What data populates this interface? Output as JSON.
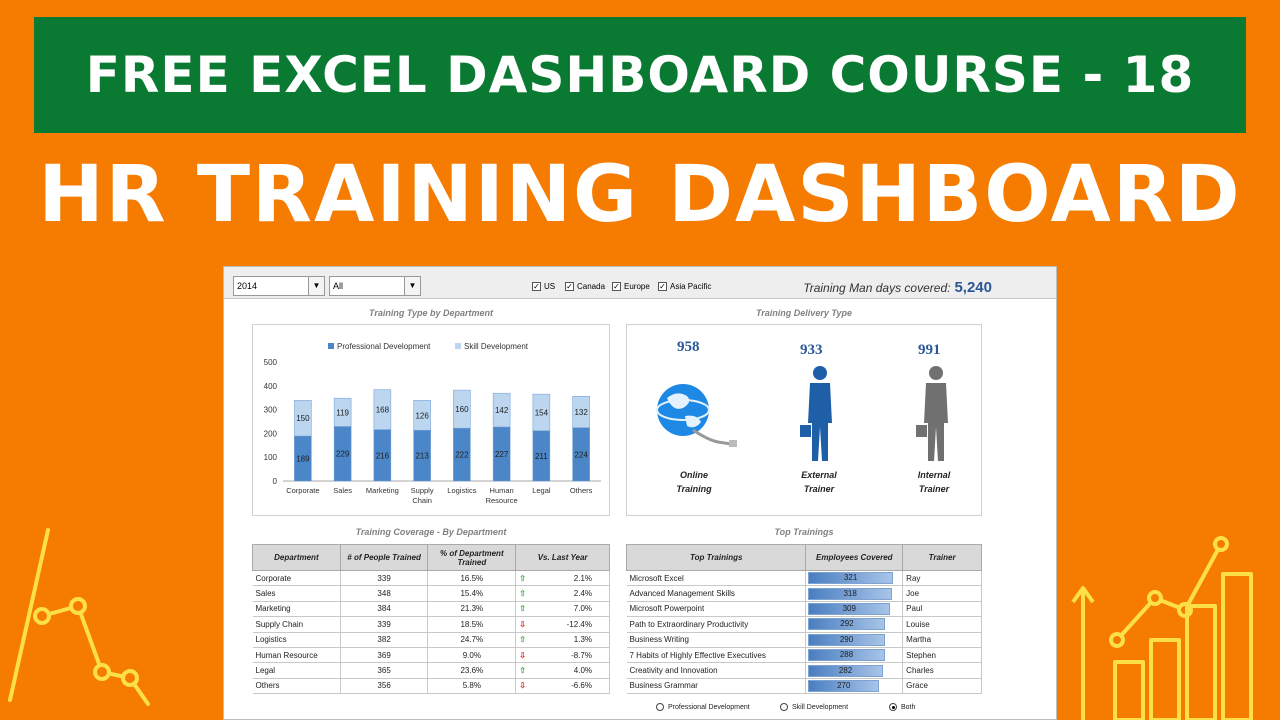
{
  "banner": {
    "title": "FREE EXCEL DASHBOARD COURSE - 18"
  },
  "headline": "HR TRAINING DASHBOARD",
  "dashboard": {
    "year_select": "2014",
    "dept_select": "All",
    "regions": [
      "US",
      "Canada",
      "Europe",
      "Asia Pacific"
    ],
    "mandays_label": "Training Man days covered:",
    "mandays_value": "5,240",
    "chart_title": "Training Type by Department",
    "delivery_title": "Training Delivery Type",
    "coverage_title": "Training Coverage - By Department",
    "top_title": "Top Trainings",
    "delivery": [
      {
        "value": "958",
        "label1": "Online",
        "label2": "Training",
        "icon": "globe-icon"
      },
      {
        "value": "933",
        "label1": "External",
        "label2": "Trainer",
        "icon": "businessman-icon"
      },
      {
        "value": "991",
        "label1": "Internal",
        "label2": "Trainer",
        "icon": "businessman-icon"
      }
    ],
    "coverage_headers": [
      "Department",
      "# of People Trained",
      "% of Department Trained",
      "Vs. Last Year"
    ],
    "coverage_rows": [
      {
        "dept": "Corporate",
        "people": "339",
        "pct": "16.5%",
        "dir": "up",
        "vs": "2.1%"
      },
      {
        "dept": "Sales",
        "people": "348",
        "pct": "15.4%",
        "dir": "up",
        "vs": "2.4%"
      },
      {
        "dept": "Marketing",
        "people": "384",
        "pct": "21.3%",
        "dir": "up",
        "vs": "7.0%"
      },
      {
        "dept": "Supply Chain",
        "people": "339",
        "pct": "18.5%",
        "dir": "down",
        "vs": "-12.4%"
      },
      {
        "dept": "Logistics",
        "people": "382",
        "pct": "24.7%",
        "dir": "up",
        "vs": "1.3%"
      },
      {
        "dept": "Human Resource",
        "people": "369",
        "pct": "9.0%",
        "dir": "down",
        "vs": "-8.7%"
      },
      {
        "dept": "Legal",
        "people": "365",
        "pct": "23.6%",
        "dir": "up",
        "vs": "4.0%"
      },
      {
        "dept": "Others",
        "people": "356",
        "pct": "5.8%",
        "dir": "down",
        "vs": "-6.6%"
      }
    ],
    "top_headers": [
      "Top Trainings",
      "Employees Covered",
      "Trainer"
    ],
    "top_rows": [
      {
        "name": "Microsoft Excel",
        "count": 321,
        "trainer": "Ray"
      },
      {
        "name": "Advanced Management Skills",
        "count": 318,
        "trainer": "Joe"
      },
      {
        "name": "Microsoft Powerpoint",
        "count": 309,
        "trainer": "Paul"
      },
      {
        "name": "Path to Extraordinary Productivity",
        "count": 292,
        "trainer": "Louise"
      },
      {
        "name": "Business Writing",
        "count": 290,
        "trainer": "Martha"
      },
      {
        "name": "7 Habits of Highly Effective Executives",
        "count": 288,
        "trainer": "Stephen"
      },
      {
        "name": "Creativity and Innovation",
        "count": 282,
        "trainer": "Charles"
      },
      {
        "name": "Business Grammar",
        "count": 270,
        "trainer": "Grace"
      }
    ],
    "radio_options": [
      "Professional Development",
      "Skill Development",
      "Both"
    ],
    "radio_selected": 2
  },
  "colors": {
    "background": "#f57c00",
    "banner": "#0a7a33",
    "prof_dev": "#4a86c8",
    "skill_dev": "#bcd6f0"
  },
  "chart_data": {
    "type": "bar",
    "stacked": true,
    "title": "Training Type by Department",
    "categories": [
      "Corporate",
      "Sales",
      "Marketing",
      "Supply Chain",
      "Logistics",
      "Human Resource",
      "Legal",
      "Others"
    ],
    "series": [
      {
        "name": "Professional Development",
        "values": [
          189,
          229,
          216,
          213,
          222,
          227,
          211,
          224
        ]
      },
      {
        "name": "Skill Development",
        "values": [
          150,
          119,
          168,
          126,
          160,
          142,
          154,
          132
        ]
      }
    ],
    "ylim": [
      0,
      500
    ],
    "yticks": [
      0,
      100,
      200,
      300,
      400,
      500
    ],
    "legend": "top"
  }
}
